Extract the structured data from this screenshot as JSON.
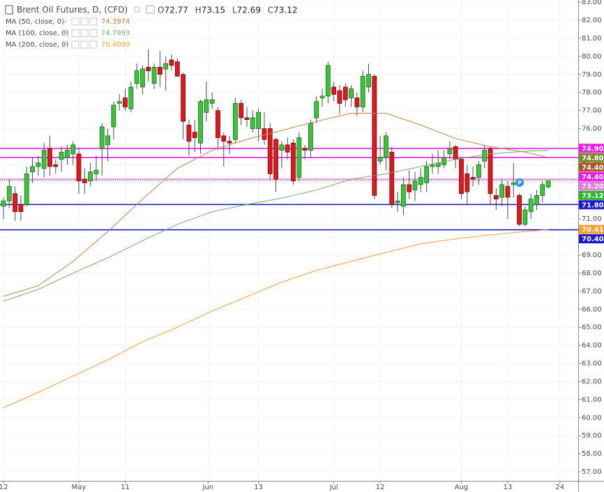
{
  "header": {
    "ohlc_prefixes": [
      "O",
      "H",
      "L",
      "C"
    ]
  },
  "chart_data": {
    "type": "candlestick",
    "title": "Brent Oil Futures, D, (CFD)",
    "up_color": "#3cc33c",
    "down_color": "#e0181d",
    "grid": true,
    "xlim": [
      -0.6,
      99.16
    ],
    "ylim": [
      56.5,
      83.12
    ],
    "xticks": [
      {
        "value": 0,
        "label": "12"
      },
      {
        "value": 13,
        "label": "May"
      },
      {
        "value": 21,
        "label": "11"
      },
      {
        "value": 35.3,
        "label": "Jun"
      },
      {
        "value": 44,
        "label": "13"
      },
      {
        "value": 57,
        "label": "Jul"
      },
      {
        "value": 65,
        "label": "12"
      },
      {
        "value": 79,
        "label": "Aug"
      },
      {
        "value": 87,
        "label": "13"
      },
      {
        "value": 96,
        "label": "24"
      }
    ],
    "yticks": [
      {
        "value": 57,
        "label": "57.00"
      },
      {
        "value": 58,
        "label": "58.00"
      },
      {
        "value": 59,
        "label": "59.00"
      },
      {
        "value": 60,
        "label": "60.00"
      },
      {
        "value": 61,
        "label": "61.00"
      },
      {
        "value": 62,
        "label": "62.00"
      },
      {
        "value": 63,
        "label": "63.00"
      },
      {
        "value": 64,
        "label": "64.00"
      },
      {
        "value": 65,
        "label": "65.00"
      },
      {
        "value": 66,
        "label": "66.00"
      },
      {
        "value": 67,
        "label": "67.00"
      },
      {
        "value": 68,
        "label": "68.00"
      },
      {
        "value": 69,
        "label": "69.00"
      },
      {
        "value": 70,
        "label": "70.00"
      },
      {
        "value": 71,
        "label": "71.00"
      },
      {
        "value": 72,
        "label": "72.00"
      },
      {
        "value": 73,
        "label": "73.00"
      },
      {
        "value": 74,
        "label": "74.00"
      },
      {
        "value": 75,
        "label": "75.00"
      },
      {
        "value": 76,
        "label": "76.00"
      },
      {
        "value": 77,
        "label": "77.00"
      },
      {
        "value": 78,
        "label": "78.00"
      },
      {
        "value": 79,
        "label": "79.00"
      },
      {
        "value": 80,
        "label": "80.00"
      },
      {
        "value": 81,
        "label": "81.00"
      },
      {
        "value": 82,
        "label": "82.00"
      },
      {
        "value": 83,
        "label": "83.00"
      }
    ],
    "candles": {
      "open": [
        71.7,
        72.0,
        72.4,
        71.8,
        71.8,
        73.6,
        73.9,
        73.8,
        74.9,
        74.0,
        74.3,
        74.4,
        74.6,
        74.6,
        73.2,
        73.1,
        73.5,
        74.9,
        75.1,
        76.1,
        77.4,
        77.7,
        77.1,
        78.5,
        78.3,
        79.4,
        78.5,
        79.4,
        79.3,
        79.8,
        79.7,
        79.0,
        76.2,
        75.8,
        75.2,
        76.9,
        77.4,
        77.0,
        75.6,
        75.3,
        75.4,
        77.4,
        76.6,
        76.0,
        76.0,
        76.0,
        76.0,
        75.4,
        74.8,
        75.1,
        75.2,
        73.3,
        74.9,
        74.8,
        76.6,
        77.7,
        77.8,
        78.3,
        78.1,
        78.3,
        77.7,
        77.7,
        77.2,
        78.3,
        78.9,
        74.2,
        74.4,
        74.7,
        71.9,
        71.7,
        72.9,
        72.6,
        72.9,
        73.0,
        73.9,
        73.9,
        74.0,
        74.6,
        75.0,
        74.3,
        73.5,
        73.3,
        73.3,
        74.2,
        74.9,
        72.3,
        72.2,
        72.8,
        72.9,
        72.3,
        70.7,
        71.4,
        71.8,
        72.3,
        72.77
      ],
      "high": [
        72.2,
        73.2,
        72.8,
        72.3,
        73.9,
        74.4,
        74.5,
        75.2,
        75.6,
        74.3,
        75.0,
        75.1,
        75.3,
        74.9,
        73.8,
        74.1,
        74.5,
        76.3,
        76.0,
        77.5,
        77.9,
        78.2,
        78.6,
        79.6,
        79.5,
        80.4,
        79.6,
        80.3,
        80.0,
        80.1,
        79.9,
        79.1,
        76.5,
        76.5,
        77.6,
        78.6,
        78.0,
        77.2,
        75.8,
        75.6,
        77.7,
        77.6,
        77.2,
        77.0,
        77.1,
        76.9,
        76.3,
        75.5,
        75.3,
        75.5,
        75.4,
        75.8,
        75.1,
        76.5,
        77.8,
        78.2,
        79.7,
        78.6,
        78.4,
        78.5,
        78.4,
        78.0,
        79.2,
        79.6,
        79.0,
        75.6,
        75.8,
        75.0,
        72.5,
        73.3,
        73.7,
        73.6,
        73.8,
        74.2,
        74.6,
        74.8,
        74.8,
        75.3,
        75.1,
        74.4,
        74.0,
        73.9,
        74.2,
        75.1,
        75.0,
        72.7,
        73.2,
        73.1,
        74.1,
        72.4,
        71.7,
        72.4,
        72.6,
        73.1,
        73.15
      ],
      "low": [
        71.0,
        71.6,
        70.9,
        70.9,
        71.7,
        73.0,
        73.4,
        73.3,
        73.4,
        73.5,
        73.6,
        74.0,
        74.0,
        72.4,
        72.4,
        72.8,
        73.1,
        73.4,
        74.2,
        75.4,
        77.0,
        77.0,
        76.9,
        78.2,
        77.9,
        78.6,
        78.2,
        78.3,
        78.1,
        79.2,
        78.9,
        75.4,
        74.5,
        74.7,
        74.6,
        76.4,
        77.1,
        74.8,
        73.9,
        74.6,
        75.2,
        76.2,
        76.1,
        75.8,
        75.3,
        75.1,
        73.2,
        72.5,
        73.8,
        74.3,
        72.9,
        73.1,
        74.3,
        74.4,
        76.3,
        77.2,
        77.4,
        77.5,
        76.8,
        77.2,
        77.2,
        76.7,
        76.9,
        78.0,
        72.1,
        74.0,
        73.7,
        71.6,
        71.4,
        71.2,
        72.1,
        72.0,
        72.5,
        72.5,
        73.5,
        73.5,
        73.8,
        74.3,
        73.8,
        72.1,
        71.8,
        72.8,
        72.9,
        73.8,
        71.8,
        71.5,
        71.7,
        71.0,
        72.2,
        70.6,
        70.6,
        71.0,
        71.5,
        71.9,
        72.69
      ],
      "close": [
        72.0,
        72.8,
        71.4,
        71.4,
        73.5,
        73.9,
        74.1,
        74.8,
        73.9,
        73.9,
        74.7,
        74.8,
        75.1,
        73.1,
        73.0,
        73.6,
        73.7,
        76.1,
        75.6,
        77.3,
        77.5,
        77.2,
        78.3,
        79.2,
        79.3,
        79.2,
        79.4,
        79.0,
        79.6,
        79.5,
        78.9,
        76.4,
        75.3,
        75.5,
        77.5,
        77.6,
        77.6,
        75.5,
        75.3,
        75.2,
        77.4,
        76.6,
        76.5,
        76.6,
        76.9,
        75.4,
        73.5,
        73.2,
        75.1,
        74.7,
        73.1,
        75.5,
        74.8,
        76.3,
        77.5,
        77.8,
        79.5,
        77.9,
        77.4,
        77.6,
        78.2,
        77.2,
        78.9,
        79.0,
        72.3,
        74.4,
        75.6,
        71.8,
        72.0,
        72.9,
        72.5,
        73.1,
        73.3,
        73.9,
        74.0,
        74.1,
        74.4,
        74.9,
        74.3,
        72.4,
        72.5,
        73.2,
        74.0,
        74.8,
        72.4,
        72.1,
        72.9,
        72.2,
        73.0,
        70.7,
        71.5,
        72.1,
        72.3,
        72.9,
        73.12
      ]
    },
    "series": [
      {
        "name": "MA (50, close, 0)",
        "color": "#c8814a",
        "x": [
          0,
          6,
          12,
          18,
          24,
          30,
          36,
          42,
          48,
          54,
          60,
          66,
          72,
          78,
          84,
          90,
          94
        ],
        "values": [
          66.72,
          67.3,
          68.65,
          70.3,
          72.1,
          73.8,
          74.8,
          75.4,
          75.9,
          76.4,
          76.85,
          76.85,
          76.2,
          75.45,
          75.0,
          74.7,
          74.3974
        ]
      },
      {
        "name": "MA (100, close, 0)",
        "color": "#79a86a",
        "x": [
          0,
          6,
          12,
          18,
          24,
          30,
          36,
          42,
          48,
          54,
          60,
          66,
          72,
          78,
          84,
          90,
          94
        ],
        "values": [
          66.45,
          67.1,
          68.0,
          68.85,
          69.8,
          70.7,
          71.4,
          71.8,
          72.15,
          72.6,
          73.2,
          73.5,
          73.9,
          74.3,
          74.6,
          74.75,
          74.7993
        ]
      },
      {
        "name": "MA (200, close, 0)",
        "color": "#f5a031",
        "x": [
          0,
          6,
          12,
          18,
          24,
          30,
          36,
          42,
          48,
          54,
          60,
          66,
          72,
          78,
          84,
          90,
          94
        ],
        "values": [
          60.55,
          61.4,
          62.3,
          63.2,
          64.2,
          65.0,
          65.9,
          66.7,
          67.5,
          68.15,
          68.65,
          69.15,
          69.62,
          69.9,
          70.12,
          70.3,
          70.4099
        ]
      }
    ],
    "price_labels": [
      {
        "value": 74.9,
        "label": "74.90",
        "color": "#e81ee6",
        "line": "solid"
      },
      {
        "value": 74.8,
        "label": "74.80",
        "color": "#7b8a2e",
        "line": "none"
      },
      {
        "value": 74.4,
        "label": "74.40",
        "color": "#a8562a",
        "line": "none"
      },
      {
        "value": 74.4,
        "label": "74.40",
        "color": "#e81ee6",
        "line": "solid"
      },
      {
        "value": 73.2,
        "label": "73.20",
        "color": "#e47ae0",
        "line": "solid"
      },
      {
        "value": 73.12,
        "label": "73.12",
        "color": "#2fb62f",
        "line": "dotted"
      },
      {
        "value": 71.8,
        "label": "71.80",
        "color": "#1a1acc",
        "line": "solid"
      },
      {
        "value": 70.41,
        "label": "70.41",
        "color": "#f5a031",
        "line": "none"
      },
      {
        "value": 70.4,
        "label": "70.40",
        "color": "#1a1acc",
        "line": "solid"
      }
    ]
  }
}
